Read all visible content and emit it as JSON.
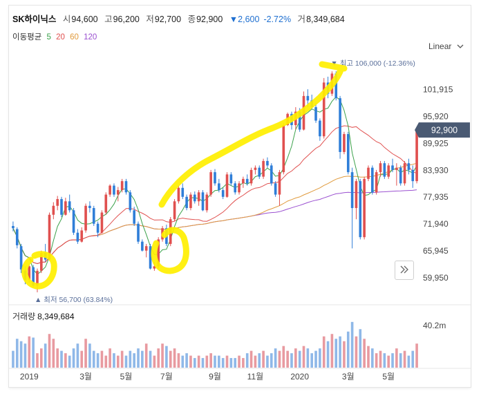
{
  "header": {
    "name": "SK하이닉스",
    "open_label": "시",
    "open": "94,600",
    "high_label": "고",
    "high": "96,200",
    "low_label": "저",
    "low": "92,700",
    "close_label": "종",
    "close": "92,900",
    "change_arrow": "▼",
    "change": "2,600",
    "change_pct": "-2.72%",
    "volume_label": "거",
    "volume": "8,349,684"
  },
  "ma_legend": {
    "label": "이동평균",
    "items": [
      {
        "period": "5",
        "color": "#3aa14a"
      },
      {
        "period": "20",
        "color": "#e0504f"
      },
      {
        "period": "60",
        "color": "#e09a3c"
      },
      {
        "period": "120",
        "color": "#9a4fd0"
      }
    ]
  },
  "scale_selector": {
    "label": "Linear",
    "icon": "chevron-down-icon"
  },
  "volume_panel": {
    "label": "거래량",
    "value": "8,349,684",
    "axis_max_label": "40.2m"
  },
  "expand_button": {
    "icon": "double-chevron-right-icon"
  },
  "colors": {
    "up": "#e0504f",
    "down": "#2f7ed8",
    "vol_up": "#e89aa0",
    "vol_down": "#8fb8e8",
    "ma5": "#3aa14a",
    "ma20": "#e0504f",
    "ma60": "#e09a3c",
    "ma120": "#9a4fd0",
    "price_tag": "#4a5a73",
    "highlight": "#ffef00"
  },
  "chart_data": {
    "type": "candlestick",
    "y_ticks": [
      "101,915",
      "95,920",
      "89,925",
      "83,930",
      "77,935",
      "71,940",
      "65,945",
      "59,950"
    ],
    "y_tick_values": [
      101915,
      95920,
      89925,
      83930,
      77935,
      71940,
      65945,
      59950
    ],
    "ylim": [
      55000,
      110500
    ],
    "x_ticks": [
      "2019",
      "3월",
      "5월",
      "7월",
      "9월",
      "11월",
      "2020",
      "3월",
      "5월"
    ],
    "x_tick_index": [
      4,
      18,
      28,
      38,
      50,
      60,
      71,
      83,
      93
    ],
    "current_price_label": "92,900",
    "max_annotation": {
      "text": "최고 106,000 (-12.36%)",
      "marker": "▼",
      "value": 106000,
      "index": 79
    },
    "min_annotation": {
      "text": "최저 56,700 (63.84%)",
      "marker": "▲",
      "value": 56700,
      "index": 6
    },
    "volume_ylim": [
      0,
      40200000
    ],
    "candles": [
      [
        71500,
        72500,
        70300,
        71000,
        14
      ],
      [
        70800,
        71200,
        66500,
        67200,
        24
      ],
      [
        67000,
        67500,
        61000,
        61800,
        22
      ],
      [
        61500,
        62500,
        58500,
        59500,
        20
      ],
      [
        59500,
        63000,
        58800,
        62500,
        26
      ],
      [
        62300,
        62800,
        57800,
        58200,
        25
      ],
      [
        58200,
        62000,
        56700,
        61500,
        12
      ],
      [
        61500,
        66000,
        61000,
        65500,
        16
      ],
      [
        65500,
        67500,
        63500,
        64000,
        20
      ],
      [
        64000,
        74500,
        63800,
        74000,
        28
      ],
      [
        74000,
        76800,
        73000,
        76000,
        24
      ],
      [
        76000,
        78200,
        75000,
        77500,
        16
      ],
      [
        77500,
        78000,
        73500,
        74000,
        14
      ],
      [
        74000,
        77800,
        73800,
        77000,
        12
      ],
      [
        77000,
        78500,
        74500,
        75000,
        10
      ],
      [
        75000,
        75500,
        69500,
        70000,
        16
      ],
      [
        70000,
        70800,
        67500,
        68000,
        20
      ],
      [
        68000,
        71200,
        67800,
        70500,
        14
      ],
      [
        70500,
        76500,
        70000,
        76000,
        24
      ],
      [
        76000,
        77000,
        74500,
        75500,
        20
      ],
      [
        75500,
        76000,
        71500,
        72000,
        14
      ],
      [
        72000,
        72500,
        69000,
        70000,
        12
      ],
      [
        70000,
        75000,
        69800,
        74500,
        14
      ],
      [
        74500,
        79000,
        74000,
        78500,
        10
      ],
      [
        78500,
        80800,
        78000,
        80500,
        16
      ],
      [
        80500,
        81000,
        78000,
        78500,
        12
      ],
      [
        78500,
        80200,
        77000,
        79500,
        10
      ],
      [
        79500,
        82000,
        79000,
        81500,
        14
      ],
      [
        81500,
        82000,
        78500,
        79000,
        10
      ],
      [
        79000,
        79500,
        74500,
        75000,
        14
      ],
      [
        75000,
        75800,
        71500,
        72000,
        12
      ],
      [
        72000,
        72500,
        67500,
        68000,
        16
      ],
      [
        68000,
        68500,
        65800,
        66000,
        14
      ],
      [
        66000,
        67500,
        64500,
        67000,
        20
      ],
      [
        67000,
        67500,
        61800,
        62000,
        14
      ],
      [
        62000,
        63500,
        61500,
        62500,
        10
      ],
      [
        62500,
        69000,
        62000,
        68500,
        16
      ],
      [
        68500,
        71500,
        68000,
        71000,
        20
      ],
      [
        71000,
        71800,
        67000,
        67500,
        18
      ],
      [
        67500,
        73500,
        67000,
        73000,
        14
      ],
      [
        73000,
        77500,
        72500,
        77000,
        16
      ],
      [
        77000,
        80500,
        76500,
        80000,
        12
      ],
      [
        80000,
        81000,
        77500,
        78000,
        10
      ],
      [
        78000,
        78500,
        75000,
        75500,
        12
      ],
      [
        75500,
        79000,
        75000,
        78500,
        10
      ],
      [
        78500,
        79200,
        76500,
        77000,
        8
      ],
      [
        77000,
        79500,
        76000,
        79000,
        10
      ],
      [
        79000,
        79500,
        74800,
        75000,
        8
      ],
      [
        75000,
        79000,
        74500,
        78500,
        10
      ],
      [
        78500,
        84000,
        78000,
        83500,
        12
      ],
      [
        83500,
        84200,
        80500,
        81000,
        10
      ],
      [
        81000,
        82000,
        79000,
        79500,
        10
      ],
      [
        79500,
        80000,
        77500,
        78000,
        8
      ],
      [
        78000,
        83500,
        77800,
        83000,
        10
      ],
      [
        83000,
        83500,
        80500,
        81000,
        8
      ],
      [
        81000,
        81500,
        78500,
        79000,
        8
      ],
      [
        79000,
        81500,
        78500,
        81000,
        10
      ],
      [
        81000,
        82500,
        80000,
        82000,
        8
      ],
      [
        82000,
        83000,
        80500,
        81000,
        12
      ],
      [
        81000,
        84500,
        80500,
        84000,
        14
      ],
      [
        84000,
        85000,
        83000,
        84500,
        10
      ],
      [
        84500,
        85000,
        82000,
        82500,
        12
      ],
      [
        82500,
        86500,
        82000,
        86000,
        14
      ],
      [
        86000,
        86800,
        84500,
        85000,
        10
      ],
      [
        85000,
        85500,
        80500,
        81000,
        12
      ],
      [
        81000,
        81500,
        78000,
        78500,
        16
      ],
      [
        78500,
        84000,
        76000,
        83500,
        14
      ],
      [
        83500,
        94500,
        83000,
        94000,
        18
      ],
      [
        94000,
        96800,
        93800,
        96500,
        14
      ],
      [
        96500,
        97000,
        93000,
        94000,
        12
      ],
      [
        94000,
        98000,
        93000,
        97000,
        16
      ],
      [
        97000,
        97800,
        92500,
        93000,
        14
      ],
      [
        93000,
        101500,
        92800,
        100500,
        18
      ],
      [
        100500,
        102000,
        98000,
        99500,
        16
      ],
      [
        99500,
        100800,
        97500,
        98000,
        12
      ],
      [
        98000,
        99000,
        94500,
        95000,
        14
      ],
      [
        95000,
        95500,
        90500,
        91500,
        16
      ],
      [
        91500,
        104500,
        91000,
        103500,
        26
      ],
      [
        103500,
        104800,
        100000,
        101000,
        22
      ],
      [
        101000,
        106000,
        100500,
        105500,
        28
      ],
      [
        105500,
        106000,
        99500,
        100000,
        24
      ],
      [
        100000,
        100500,
        86500,
        88000,
        26
      ],
      [
        88000,
        92500,
        87500,
        92000,
        22
      ],
      [
        92000,
        92500,
        83000,
        83500,
        30
      ],
      [
        83500,
        84500,
        66500,
        75500,
        38
      ],
      [
        75500,
        82000,
        73000,
        81500,
        26
      ],
      [
        81500,
        82000,
        68500,
        69000,
        32
      ],
      [
        69000,
        82500,
        68500,
        82000,
        24
      ],
      [
        82000,
        85000,
        81500,
        84500,
        18
      ],
      [
        84500,
        85000,
        78500,
        79000,
        16
      ],
      [
        79000,
        84000,
        78500,
        83500,
        12
      ],
      [
        83500,
        86000,
        82500,
        85500,
        14
      ],
      [
        85500,
        86000,
        82000,
        82500,
        12
      ],
      [
        82500,
        85500,
        82000,
        85000,
        10
      ],
      [
        85000,
        86500,
        83500,
        84000,
        12
      ],
      [
        84000,
        85500,
        80500,
        84500,
        16
      ],
      [
        84500,
        85000,
        80500,
        81000,
        12
      ],
      [
        81000,
        86000,
        80500,
        85500,
        14
      ],
      [
        85500,
        86500,
        83000,
        84000,
        10
      ],
      [
        84000,
        85000,
        80000,
        81500,
        14
      ],
      [
        81500,
        93600,
        81000,
        92900,
        20
      ]
    ]
  }
}
